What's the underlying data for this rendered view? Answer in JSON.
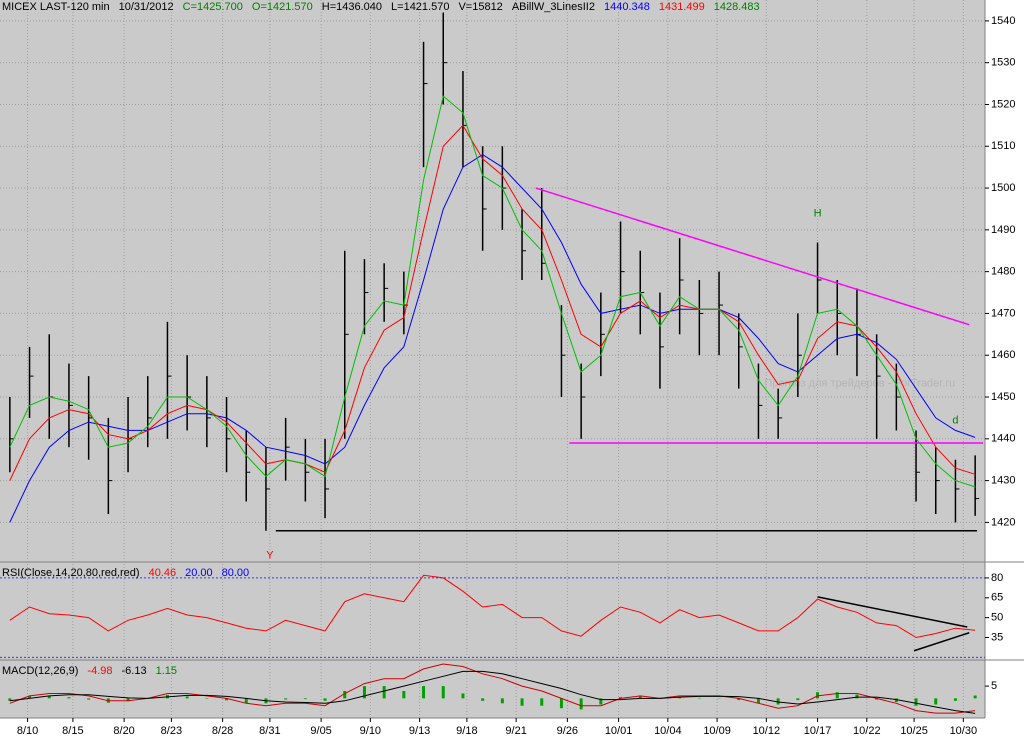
{
  "chart_data": [
    {
      "type": "ohlc",
      "header": [
        {
          "text": "MICEX LAST-120 min",
          "color": "#000000"
        },
        {
          "text": "10/31/2012",
          "color": "#000000"
        },
        {
          "text": "C=1425.700",
          "color": "#008000"
        },
        {
          "text": "O=1421.570",
          "color": "#008000"
        },
        {
          "text": "H=1436.040",
          "color": "#000000"
        },
        {
          "text": "L=1421.570",
          "color": "#000000"
        },
        {
          "text": "V=15812",
          "color": "#000000"
        },
        {
          "text": "ABillW_3LinesII2",
          "color": "#000000"
        },
        {
          "text": "1440.348",
          "color": "#0000ff"
        },
        {
          "text": "1431.499",
          "color": "#ff0000"
        },
        {
          "text": "1428.483",
          "color": "#008000"
        }
      ],
      "bars": {
        "color": "#000000",
        "high": [
          1450,
          1462,
          1465,
          1458,
          1455,
          1445,
          1450,
          1455,
          1468,
          1460,
          1455,
          1450,
          1442,
          1438,
          1445,
          1440,
          1440,
          1485,
          1483,
          1482,
          1480,
          1535,
          1542,
          1528,
          1510,
          1510,
          1495,
          1500,
          1472,
          1458,
          1475,
          1492,
          1485,
          1475,
          1488,
          1478,
          1480,
          1470,
          1458,
          1452,
          1470,
          1487,
          1478,
          1476,
          1465,
          1458,
          1442,
          1438,
          1435,
          1436.04
        ],
        "low": [
          1432,
          1445,
          1440,
          1438,
          1435,
          1422,
          1432,
          1438,
          1440,
          1442,
          1438,
          1432,
          1425,
          1418,
          1430,
          1425,
          1421,
          1440,
          1465,
          1468,
          1465,
          1505,
          1520,
          1505,
          1485,
          1490,
          1478,
          1478,
          1450,
          1440,
          1455,
          1470,
          1465,
          1452,
          1465,
          1460,
          1460,
          1452,
          1440,
          1440,
          1450,
          1470,
          1460,
          1455,
          1440,
          1442,
          1425,
          1422,
          1420,
          1421.57
        ],
        "close": [
          1440,
          1455,
          1450,
          1448,
          1445,
          1430,
          1440,
          1445,
          1455,
          1450,
          1445,
          1440,
          1432,
          1428,
          1438,
          1432,
          1428,
          1465,
          1475,
          1476,
          1472,
          1525,
          1530,
          1515,
          1495,
          1500,
          1485,
          1482,
          1460,
          1450,
          1465,
          1480,
          1475,
          1462,
          1478,
          1470,
          1472,
          1462,
          1448,
          1445,
          1460,
          1478,
          1470,
          1465,
          1455,
          1450,
          1432,
          1430,
          1428,
          1425.7
        ]
      },
      "series": [
        {
          "color": "#0000ff",
          "values": [
            1420,
            1430,
            1438,
            1442,
            1444,
            1443,
            1442,
            1442,
            1444,
            1446,
            1446,
            1445,
            1442,
            1438,
            1437,
            1436,
            1434,
            1438,
            1448,
            1457,
            1462,
            1478,
            1495,
            1505,
            1508,
            1505,
            1500,
            1495,
            1487,
            1477,
            1470,
            1471,
            1472,
            1470,
            1471,
            1471,
            1471,
            1469,
            1464,
            1458,
            1456,
            1460,
            1464,
            1465,
            1463,
            1459,
            1452,
            1445,
            1442,
            1440.348
          ]
        },
        {
          "color": "#ff0000",
          "values": [
            1430,
            1440,
            1445,
            1447,
            1446,
            1441,
            1440,
            1442,
            1446,
            1448,
            1447,
            1444,
            1439,
            1434,
            1435,
            1434,
            1432,
            1442,
            1457,
            1466,
            1469,
            1490,
            1510,
            1515,
            1507,
            1503,
            1495,
            1490,
            1478,
            1465,
            1462,
            1470,
            1473,
            1469,
            1472,
            1471,
            1471,
            1468,
            1460,
            1453,
            1454,
            1464,
            1468,
            1467,
            1462,
            1456,
            1446,
            1438,
            1433,
            1431.499
          ]
        },
        {
          "color": "#00c000",
          "values": [
            1438,
            1448,
            1450,
            1449,
            1447,
            1438,
            1439,
            1443,
            1450,
            1450,
            1447,
            1443,
            1436,
            1431,
            1435,
            1434,
            1431,
            1450,
            1467,
            1473,
            1472,
            1502,
            1522,
            1518,
            1503,
            1500,
            1490,
            1485,
            1470,
            1456,
            1460,
            1474,
            1475,
            1467,
            1474,
            1471,
            1471,
            1466,
            1454,
            1448,
            1455,
            1470,
            1471,
            1467,
            1460,
            1453,
            1440,
            1434,
            1430,
            1428.483
          ]
        }
      ],
      "ylim": [
        1411,
        1545
      ],
      "yticks": [
        1420,
        1430,
        1440,
        1450,
        1460,
        1470,
        1480,
        1490,
        1500,
        1510,
        1520,
        1530,
        1540
      ],
      "grid": true,
      "trendlines": [
        {
          "x": [
            26.7,
            48.7
          ],
          "y": [
            1500,
            1467.3
          ],
          "color": "#ff00ff"
        },
        {
          "x": [
            28.4,
            49.4
          ],
          "y": [
            1439,
            1439
          ],
          "color": "#ff00ff"
        },
        {
          "x": [
            13.5,
            49.1
          ],
          "y": [
            1418,
            1418
          ],
          "color": "#000000"
        }
      ],
      "annotations": [
        {
          "text": "H",
          "x": 41.0,
          "y": 1493.9,
          "color": "#008000"
        },
        {
          "text": "Y",
          "x": 13.2,
          "y": 1412.1,
          "color": "#ff0000"
        },
        {
          "text": "d",
          "x": 48.0,
          "y": 1444.4,
          "color": "#008000"
        },
        {
          "text": "Прогноз для трейдеров - ForTrader.ru",
          "x": 38.3,
          "y": 1453.2,
          "color": "#b4b4b4"
        }
      ]
    },
    {
      "type": "line",
      "header": [
        {
          "text": "RSI(Close,14,20,80,red,red)",
          "color": "#000000"
        },
        {
          "text": "40.46",
          "color": "#ff0000"
        },
        {
          "text": "20.00",
          "color": "#0000ff"
        },
        {
          "text": "80.00",
          "color": "#0000ff"
        }
      ],
      "series": [
        {
          "color": "#ff0000",
          "values": [
            48,
            58,
            53,
            52,
            50,
            40,
            48,
            52,
            57,
            52,
            50,
            46,
            42,
            40,
            48,
            44,
            40,
            62,
            68,
            65,
            62,
            82,
            80,
            70,
            58,
            60,
            50,
            50,
            40,
            36,
            48,
            58,
            54,
            46,
            56,
            50,
            52,
            46,
            40,
            40,
            50,
            64,
            58,
            54,
            46,
            44,
            35,
            38,
            42,
            40.46
          ]
        }
      ],
      "levels": [
        {
          "value": 80,
          "color": "#3333ff"
        },
        {
          "value": 20,
          "color": "#3333ff"
        }
      ],
      "ylim": [
        18,
        89
      ],
      "yticks": [
        35,
        50,
        65,
        80
      ],
      "trendlines": [
        {
          "x": [
            41.0,
            48.6
          ],
          "y": [
            65.7,
            42.9
          ],
          "color": "#000000"
        },
        {
          "x": [
            45.9,
            48.7
          ],
          "y": [
            25,
            38.6
          ],
          "color": "#000000"
        }
      ]
    },
    {
      "type": "macd",
      "header": [
        {
          "text": "MACD(12,26,9)",
          "color": "#000000"
        },
        {
          "text": "-4.98",
          "color": "#ff0000"
        },
        {
          "text": "-6.13",
          "color": "#000000"
        },
        {
          "text": "1.15",
          "color": "#008000"
        }
      ],
      "series": [
        {
          "color": "#cc0000",
          "values": [
            -2,
            1,
            2,
            2,
            1,
            -1,
            -1,
            0,
            2,
            2,
            1,
            0,
            -2,
            -3,
            -2,
            -2,
            -3,
            2,
            6,
            8,
            8,
            12,
            14,
            13,
            10,
            8,
            5,
            3,
            0,
            -3,
            -3,
            0,
            1,
            0,
            1,
            1,
            1,
            0,
            -2,
            -4,
            -3,
            1,
            2,
            2,
            0,
            -2,
            -5,
            -6,
            -6,
            -4.98
          ]
        },
        {
          "color": "#000000",
          "values": [
            -1,
            0,
            1,
            1.5,
            1.5,
            0.8,
            0.2,
            0,
            0.6,
            1.2,
            1.2,
            0.8,
            0,
            -1,
            -1.5,
            -1.7,
            -2,
            -1,
            1,
            3,
            5,
            7,
            9,
            11,
            11,
            10,
            8,
            6,
            4,
            1.5,
            -0.5,
            -0.5,
            0,
            0,
            0.5,
            0.8,
            0.9,
            0.7,
            0,
            -1.5,
            -2.3,
            -1.5,
            -0.5,
            0.5,
            0.5,
            -0.5,
            -2,
            -3.5,
            -5,
            -6.13
          ]
        }
      ],
      "hist": {
        "color": "#00a000",
        "values": [
          -1,
          1,
          1,
          0.5,
          -0.5,
          -1.8,
          -1.2,
          0,
          1.4,
          0.8,
          -0.2,
          -0.8,
          -2,
          -2,
          -0.5,
          -0.3,
          -1,
          3,
          5,
          5,
          3,
          5,
          5,
          2,
          -1,
          -2,
          -3,
          -3,
          -4,
          -4.5,
          -2.5,
          0.5,
          1,
          0,
          0.5,
          0.2,
          0.1,
          -0.7,
          -2,
          -2.5,
          -0.7,
          2.5,
          2.5,
          1.5,
          -0.5,
          -1.5,
          -3,
          -2.5,
          -1,
          1.15
        ]
      },
      "ylim": [
        -8,
        14
      ],
      "yticks": [
        5
      ],
      "xlim": [
        -0.5,
        49.5
      ],
      "xticks": [
        {
          "value": 0.9,
          "label": "8/10"
        },
        {
          "value": 3.2,
          "label": "8/15"
        },
        {
          "value": 5.8,
          "label": "8/20"
        },
        {
          "value": 8.2,
          "label": "8/23"
        },
        {
          "value": 10.8,
          "label": "8/28"
        },
        {
          "value": 13.2,
          "label": "8/31"
        },
        {
          "value": 15.8,
          "label": "9/05"
        },
        {
          "value": 18.3,
          "label": "9/10"
        },
        {
          "value": 20.8,
          "label": "9/13"
        },
        {
          "value": 23.2,
          "label": "9/18"
        },
        {
          "value": 25.7,
          "label": "9/21"
        },
        {
          "value": 28.3,
          "label": "9/26"
        },
        {
          "value": 30.9,
          "label": "10/01"
        },
        {
          "value": 33.4,
          "label": "10/04"
        },
        {
          "value": 35.9,
          "label": "10/09"
        },
        {
          "value": 38.4,
          "label": "10/12"
        },
        {
          "value": 41.0,
          "label": "10/17"
        },
        {
          "value": 43.5,
          "label": "10/22"
        },
        {
          "value": 45.9,
          "label": "10/25"
        },
        {
          "value": 48.4,
          "label": "10/30"
        }
      ]
    }
  ]
}
